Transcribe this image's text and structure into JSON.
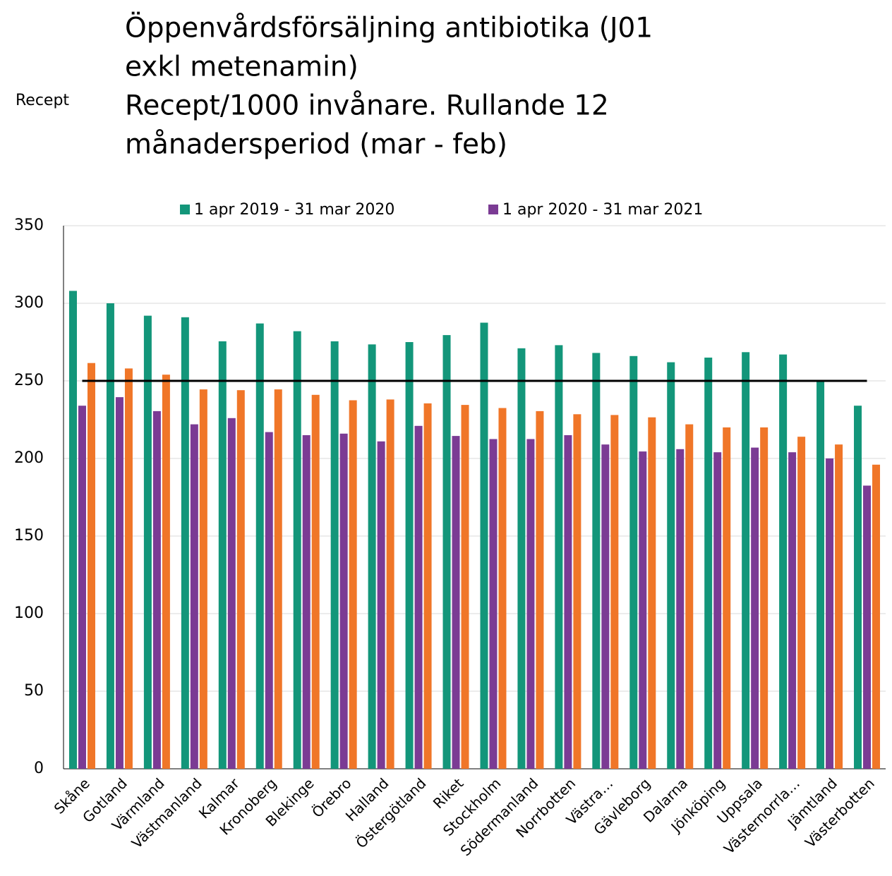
{
  "chart_data": {
    "type": "bar",
    "title": [
      "Öppenvårdsförsäljning antibiotika (J01",
      "exkl metenamin)",
      "Recept/1000 invånare. Rullande 12",
      "månadersperiod (mar - feb)"
    ],
    "y_label": "Recept",
    "categories": [
      "Skåne",
      "Gotland",
      "Värmland",
      "Västmanland",
      "Kalmar",
      "Kronoberg",
      "Blekinge",
      "Örebro",
      "Halland",
      "Östergötland",
      "Riket",
      "Stockholm",
      "Södermanland",
      "Norrbotten",
      "Västra…",
      "Gävleborg",
      "Dalarna",
      "Jönköping",
      "Uppsala",
      "Västernorrla…",
      "Jämtland",
      "Västerbotten"
    ],
    "series": [
      {
        "name": "1 apr 2019 - 31 mar 2020",
        "color": "#13967a",
        "values": [
          308,
          300,
          292,
          291,
          275.5,
          287,
          282,
          275.5,
          273.5,
          275,
          279.5,
          287.5,
          271,
          273,
          268,
          266,
          262,
          265,
          268.5,
          267,
          250,
          234
        ]
      },
      {
        "name": "1 apr 2020 - 31 mar 2021",
        "color": "#7b3b94",
        "values": [
          234,
          239.5,
          230.5,
          222,
          226,
          217,
          215,
          216,
          211,
          221,
          214.5,
          212.5,
          212.5,
          215,
          209,
          204.5,
          206,
          204,
          207,
          204,
          200,
          182.5
        ]
      },
      {
        "color": "#f07628",
        "values": [
          261.5,
          258,
          254,
          244.5,
          244,
          244.5,
          241,
          237.5,
          238,
          235.5,
          234.5,
          232.5,
          230.5,
          228.5,
          228,
          226.5,
          222,
          220,
          220,
          214,
          209,
          196
        ]
      }
    ],
    "reference_line": 250,
    "ylim": [
      0,
      350
    ],
    "yticks": [
      0,
      50,
      100,
      150,
      200,
      250,
      300,
      350
    ],
    "grid": true
  }
}
